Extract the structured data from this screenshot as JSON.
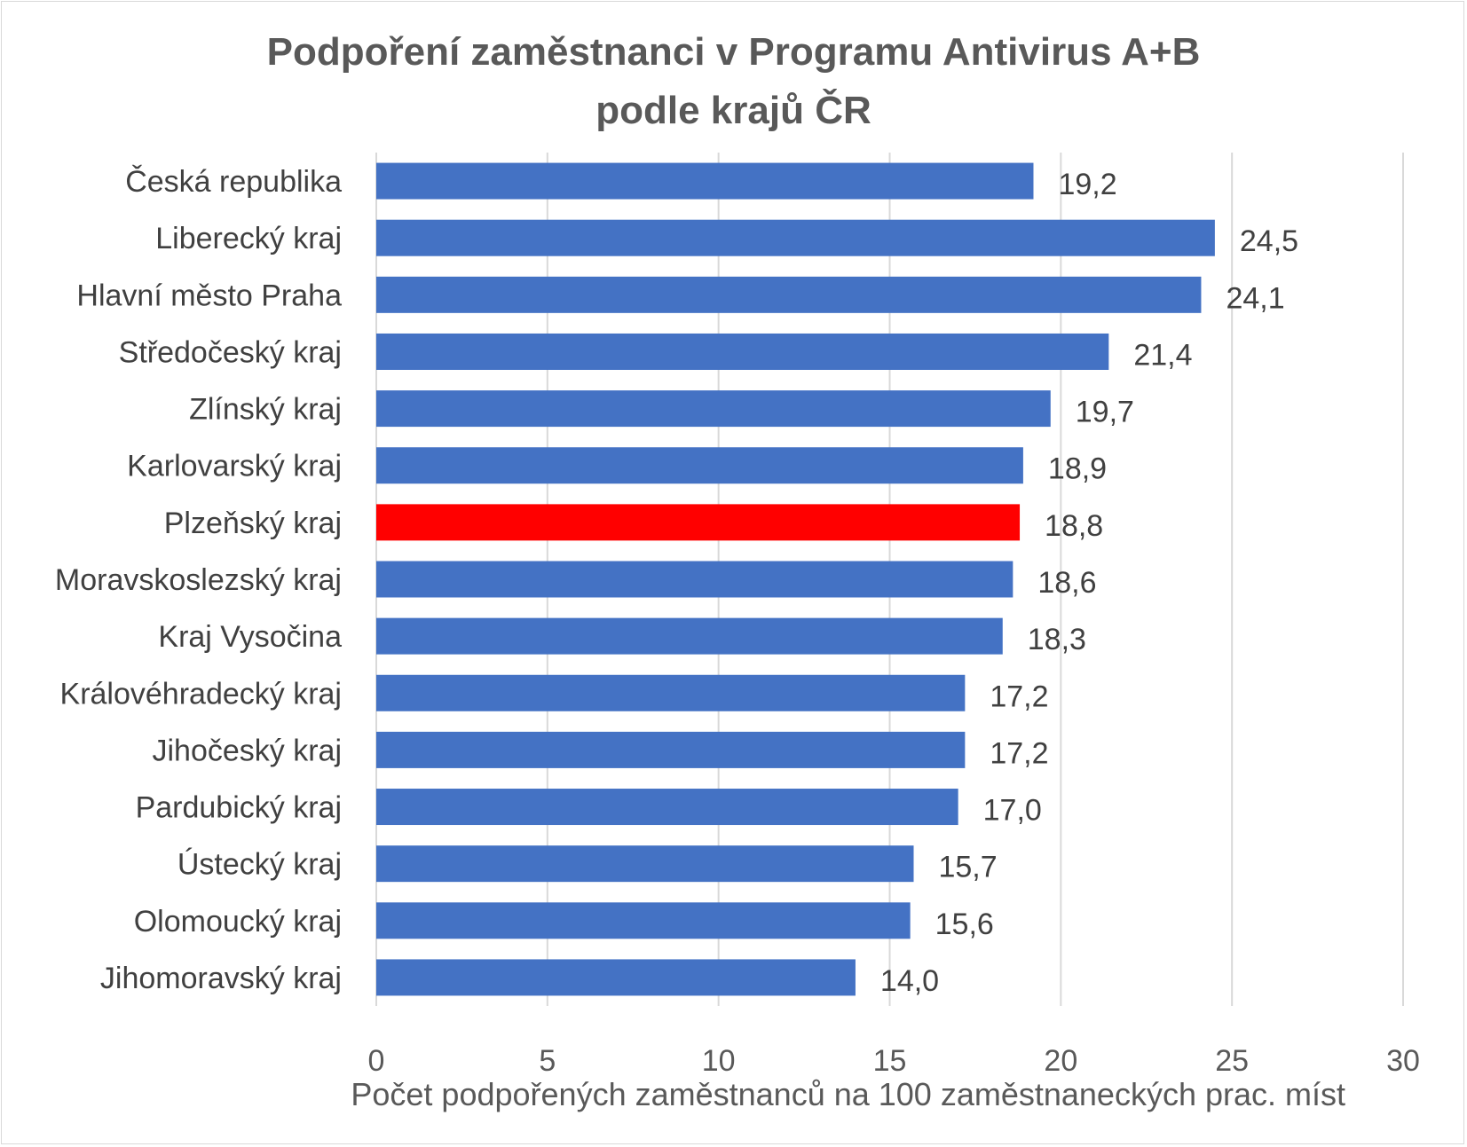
{
  "chart_data": {
    "type": "bar",
    "orientation": "horizontal",
    "title_lines": [
      "Podpoření zaměstnanci v Programu Antivirus A+B",
      "podle krajů ČR"
    ],
    "xlabel": "Počet podpořených zaměstnanců na 100 zaměstnaneckých prac. míst",
    "ylabel": "",
    "xlim": [
      0,
      30
    ],
    "xticks": [
      "0",
      "5",
      "10",
      "15",
      "20",
      "25",
      "30"
    ],
    "grid": true,
    "legend": "none",
    "categories": [
      "Česká republika",
      "Liberecký kraj",
      "Hlavní město Praha",
      "Středočeský kraj",
      "Zlínský kraj",
      "Karlovarský kraj",
      "Plzeňský kraj",
      "Moravskoslezský kraj",
      "Kraj Vysočina",
      "Královéhradecký kraj",
      "Jihočeský kraj",
      "Pardubický kraj",
      "Ústecký kraj",
      "Olomoucký kraj",
      "Jihomoravský kraj"
    ],
    "values": [
      19.2,
      24.5,
      24.1,
      21.4,
      19.7,
      18.9,
      18.8,
      18.6,
      18.3,
      17.2,
      17.2,
      17.0,
      15.7,
      15.6,
      14.0
    ],
    "value_labels": [
      "19,2",
      "24,5",
      "24,1",
      "21,4",
      "19,7",
      "18,9",
      "18,8",
      "18,6",
      "18,3",
      "17,2",
      "17,2",
      "17,0",
      "15,7",
      "15,6",
      "14,0"
    ],
    "colors": {
      "bar": "#4472c4",
      "highlight": "#ff0000",
      "highlight_category": "Plzeňský kraj",
      "gridline": "#d9d9d9"
    }
  }
}
